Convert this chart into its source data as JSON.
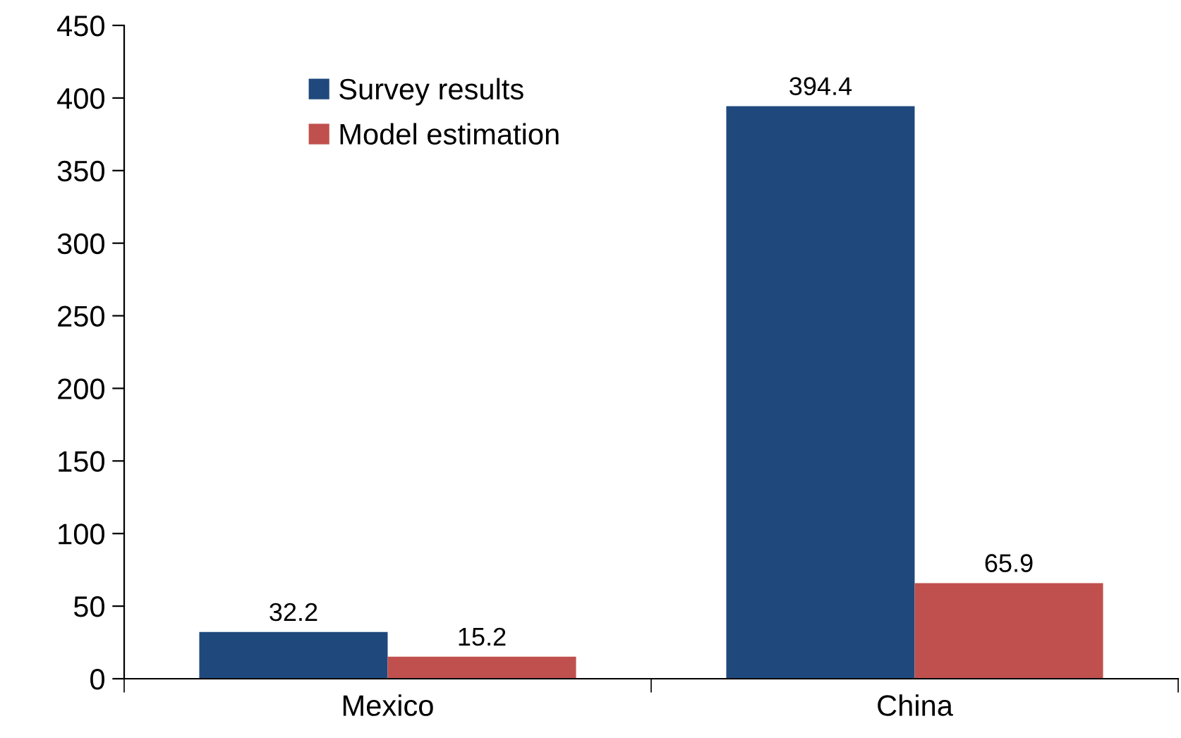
{
  "chart_data": {
    "type": "bar",
    "categories": [
      "Mexico",
      "China"
    ],
    "series": [
      {
        "name": "Survey results",
        "color": "#1f497d",
        "values": [
          32.2,
          394.4
        ]
      },
      {
        "name": "Model estimation",
        "color": "#c0504d",
        "values": [
          15.2,
          65.9
        ]
      }
    ],
    "ylim": [
      0,
      450
    ],
    "yticks": [
      0,
      50,
      100,
      150,
      200,
      250,
      300,
      350,
      400,
      450
    ],
    "data_labels": true,
    "grid": false,
    "legend": "top left"
  }
}
